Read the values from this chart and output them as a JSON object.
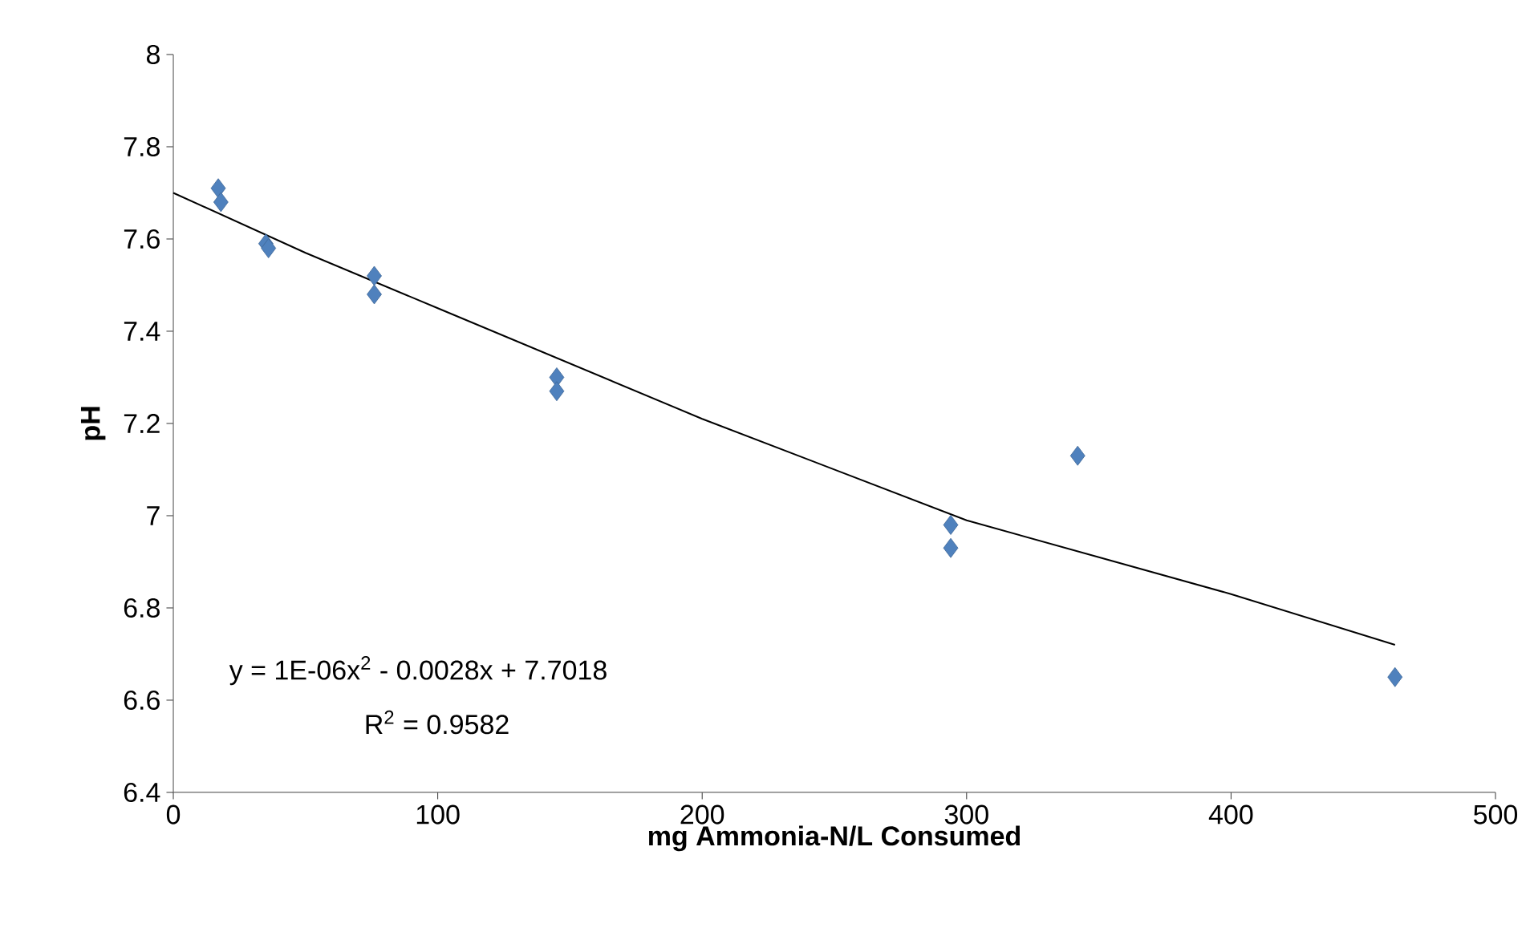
{
  "chart_data": {
    "type": "scatter",
    "xlabel": "mg Ammonia-N/L Consumed",
    "ylabel": "pH",
    "xlim": [
      0,
      500
    ],
    "xticks": [
      0,
      100,
      200,
      300,
      400,
      500
    ],
    "ylim": [
      6.4,
      8
    ],
    "yticks": [
      6.4,
      6.6,
      6.8,
      7,
      7.2,
      7.4,
      7.6,
      7.8,
      8
    ],
    "marker": "diamond",
    "grid": false,
    "series": [
      {
        "color": "#4f81bd",
        "x": [
          17,
          18,
          35,
          36,
          76,
          76,
          145,
          145,
          294,
          294,
          342,
          462
        ],
        "values": [
          7.71,
          7.68,
          7.59,
          7.58,
          7.52,
          7.48,
          7.3,
          7.27,
          6.98,
          6.93,
          7.13,
          6.65
        ]
      },
      {
        "type": "line",
        "marker": "none",
        "color": "#000000",
        "x": [
          0,
          50,
          100,
          150,
          200,
          250,
          300,
          350,
          400,
          462
        ],
        "values": [
          7.7,
          7.57,
          7.45,
          7.33,
          7.21,
          7.1,
          6.99,
          6.91,
          6.83,
          6.72
        ]
      }
    ],
    "annotations": [
      "y = 1E-06x$^{2}$ - 0.0028x + 7.7018",
      "R$^{2}$ = 0.9582"
    ]
  }
}
